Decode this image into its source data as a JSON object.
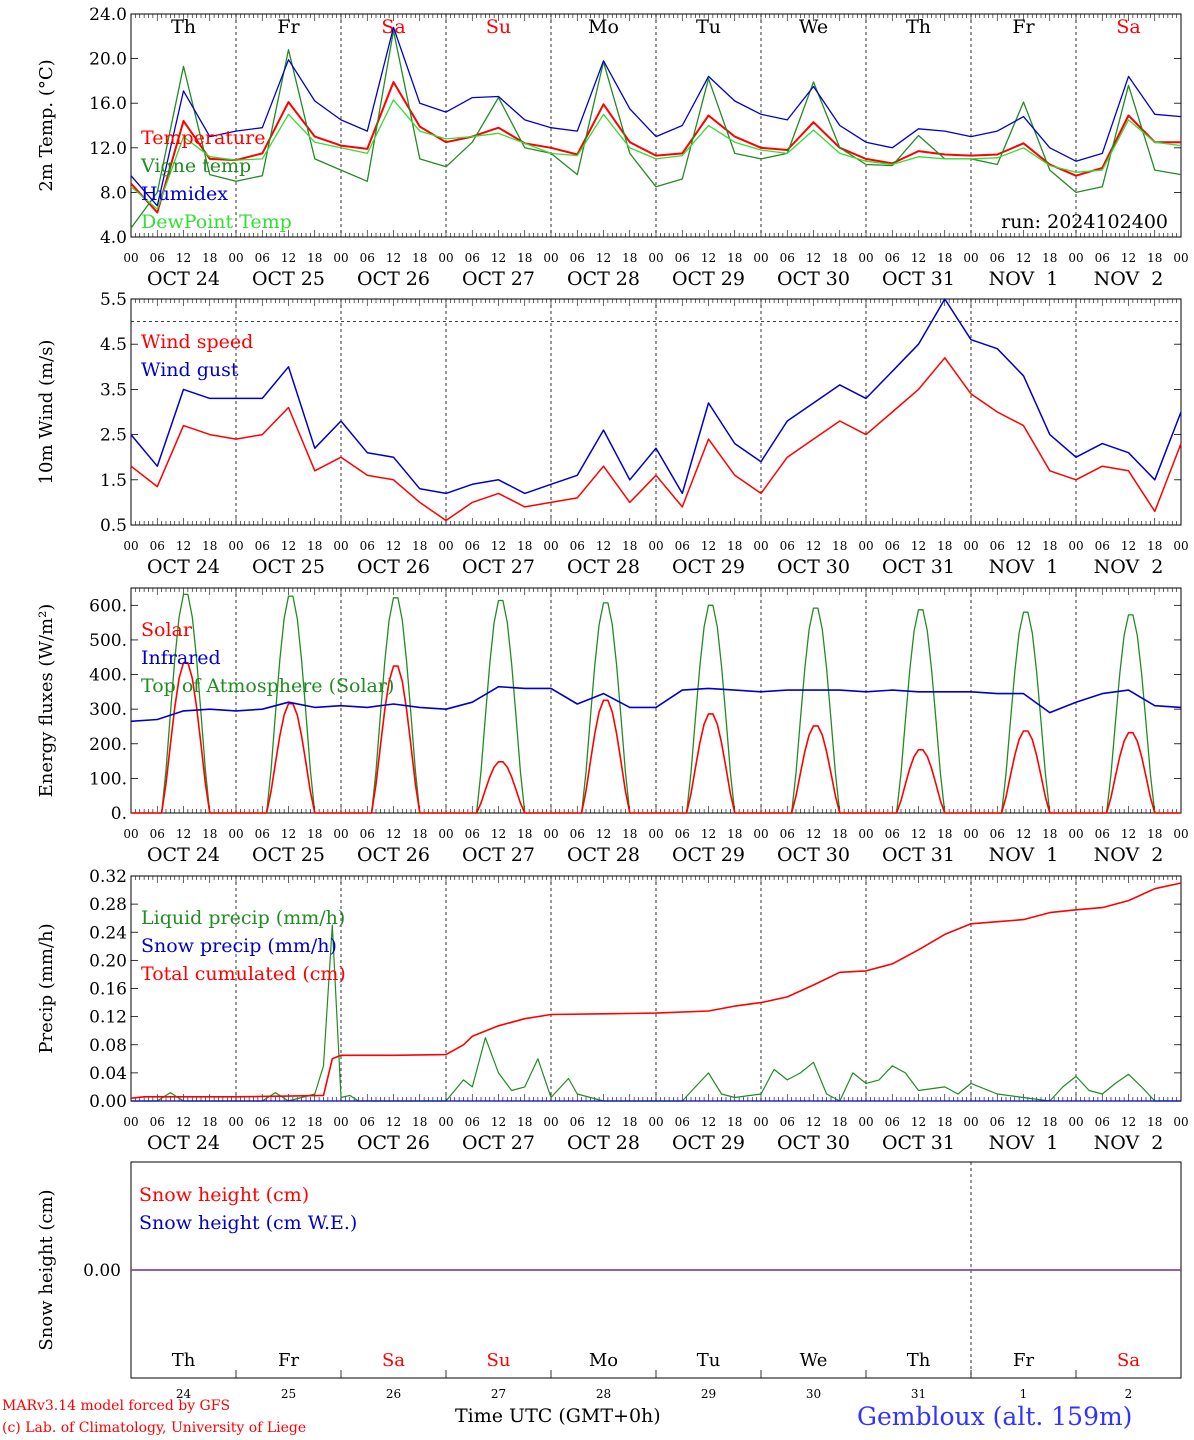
{
  "chart_data": [
    {
      "type": "line",
      "ylabel": "2m Temp. (°C)",
      "ylim": [
        4.0,
        24.0
      ],
      "yticks": [
        "4.0",
        "8.0",
        "12.0",
        "16.0",
        "20.0",
        "24.0"
      ],
      "run_label": "run: 2024102400",
      "weekday_labels": [
        "Th",
        "Fr",
        "Sa",
        "Su",
        "Mo",
        "Tu",
        "We",
        "Th",
        "Fr",
        "Sa"
      ],
      "date_labels": [
        "OCT 24",
        "OCT 25",
        "OCT 26",
        "OCT 27",
        "OCT 28",
        "OCT 29",
        "OCT 30",
        "OCT 31",
        "NOV  1",
        "NOV  2"
      ],
      "hour_ticks": [
        "00",
        "06",
        "12",
        "18"
      ],
      "x_hours": [
        0,
        6,
        12,
        18,
        24,
        30,
        36,
        42,
        48,
        54,
        60,
        66,
        72,
        78,
        84,
        90,
        96,
        102,
        108,
        114,
        120,
        126,
        132,
        138,
        144,
        150,
        156,
        162,
        168,
        174,
        180,
        186,
        192,
        198,
        204,
        210,
        216,
        222,
        228,
        234,
        240
      ],
      "series": [
        {
          "name": "Temperature",
          "color": "#ff0000",
          "values": [
            8.8,
            6.2,
            14.4,
            11.0,
            10.9,
            11.5,
            16.1,
            13.0,
            12.2,
            11.9,
            17.9,
            13.9,
            12.5,
            13.0,
            13.8,
            12.4,
            12.0,
            11.4,
            15.9,
            12.5,
            11.3,
            11.5,
            14.9,
            13.0,
            12.0,
            11.8,
            14.3,
            12.0,
            11.0,
            10.6,
            11.7,
            11.4,
            11.3,
            11.4,
            12.4,
            10.5,
            9.5,
            10.2,
            14.9,
            12.5,
            12.5
          ]
        },
        {
          "name": "Vigne temp",
          "color": "#228b22",
          "values": [
            4.8,
            8.0,
            19.3,
            9.6,
            9.0,
            9.5,
            20.8,
            11.0,
            10.0,
            9.0,
            22.5,
            11.0,
            10.3,
            12.5,
            16.5,
            12.0,
            11.5,
            9.6,
            19.7,
            11.5,
            8.5,
            9.2,
            18.2,
            11.5,
            11.0,
            11.5,
            17.9,
            12.0,
            10.5,
            10.4,
            13.1,
            11.0,
            11.0,
            10.5,
            16.1,
            10.0,
            8.0,
            8.5,
            17.6,
            10.0,
            9.6
          ]
        },
        {
          "name": "Humidex",
          "color": "#0000cc",
          "values": [
            9.5,
            6.8,
            17.1,
            13.0,
            13.5,
            13.8,
            19.9,
            16.2,
            14.5,
            13.5,
            22.8,
            16.0,
            15.2,
            16.5,
            16.6,
            14.5,
            13.8,
            13.5,
            19.8,
            15.5,
            13.0,
            14.0,
            18.4,
            16.2,
            15.0,
            14.5,
            17.5,
            14.0,
            12.5,
            12.0,
            13.7,
            13.5,
            13.0,
            13.5,
            14.8,
            12.0,
            10.8,
            11.5,
            18.4,
            15.0,
            14.8
          ]
        },
        {
          "name": "DewPoint Temp",
          "color": "#33dd33",
          "values": [
            8.5,
            6.5,
            13.0,
            11.2,
            10.9,
            11.0,
            15.0,
            12.5,
            12.0,
            11.5,
            16.3,
            13.5,
            12.8,
            13.0,
            13.3,
            12.4,
            11.5,
            11.3,
            15.0,
            12.0,
            11.0,
            11.3,
            14.0,
            12.5,
            11.8,
            11.5,
            13.6,
            11.5,
            10.8,
            10.5,
            11.2,
            11.0,
            11.0,
            11.1,
            12.0,
            10.4,
            9.8,
            10.0,
            14.5,
            12.5,
            12.2
          ]
        }
      ]
    },
    {
      "type": "line",
      "ylabel": "10m Wind (m/s)",
      "ylim": [
        0.5,
        5.5
      ],
      "yticks": [
        "0.5",
        "1.5",
        "2.5",
        "3.5",
        "4.5",
        "5.5"
      ],
      "reference_line": 5.0,
      "date_labels": [
        "OCT 24",
        "OCT 25",
        "OCT 26",
        "OCT 27",
        "OCT 28",
        "OCT 29",
        "OCT 30",
        "OCT 31",
        "NOV  1",
        "NOV  2"
      ],
      "hour_ticks": [
        "00",
        "06",
        "12",
        "18"
      ],
      "x_hours": [
        0,
        6,
        12,
        18,
        24,
        30,
        36,
        42,
        48,
        54,
        60,
        66,
        72,
        78,
        84,
        90,
        96,
        102,
        108,
        114,
        120,
        126,
        132,
        138,
        144,
        150,
        156,
        162,
        168,
        174,
        180,
        186,
        192,
        198,
        204,
        210,
        216,
        222,
        228,
        234,
        240
      ],
      "series": [
        {
          "name": "Wind speed",
          "color": "#ff0000",
          "values": [
            1.8,
            1.35,
            2.7,
            2.5,
            2.4,
            2.5,
            3.1,
            1.7,
            2.0,
            1.6,
            1.5,
            1.0,
            0.6,
            1.0,
            1.2,
            0.9,
            1.0,
            1.1,
            1.8,
            1.0,
            1.6,
            0.9,
            2.4,
            1.6,
            1.2,
            2.0,
            2.4,
            2.8,
            2.5,
            3.0,
            3.5,
            4.2,
            3.4,
            3.0,
            2.7,
            1.7,
            1.5,
            1.8,
            1.7,
            0.8,
            2.3
          ]
        },
        {
          "name": "Wind gust",
          "color": "#0000cc",
          "values": [
            2.5,
            1.8,
            3.5,
            3.3,
            3.3,
            3.3,
            4.0,
            2.2,
            2.8,
            2.1,
            2.0,
            1.3,
            1.2,
            1.4,
            1.5,
            1.2,
            1.4,
            1.6,
            2.6,
            1.5,
            2.2,
            1.2,
            3.2,
            2.3,
            1.9,
            2.8,
            3.2,
            3.6,
            3.3,
            3.9,
            4.5,
            5.5,
            4.6,
            4.4,
            3.8,
            2.5,
            2.0,
            2.3,
            2.1,
            1.5,
            3.0
          ]
        }
      ]
    },
    {
      "type": "line",
      "ylabel": "Energy fluxes (W/m²)",
      "ylim": [
        0,
        650
      ],
      "yticks": [
        "0.",
        "100.",
        "200.",
        "300.",
        "400.",
        "500.",
        "600."
      ],
      "date_labels": [
        "OCT 24",
        "OCT 25",
        "OCT 26",
        "OCT 27",
        "OCT 28",
        "OCT 29",
        "OCT 30",
        "OCT 31",
        "NOV  1",
        "NOV  2"
      ],
      "hour_ticks": [
        "00",
        "06",
        "12",
        "18"
      ],
      "daylight": {
        "sunrise_hour": 7,
        "noon_hour": 12.5,
        "sunset_hour": 18
      },
      "series": [
        {
          "name": "Solar",
          "color": "#ff0000",
          "daily_peak": [
            440,
            320,
            430,
            150,
            330,
            290,
            255,
            185,
            240,
            235
          ]
        },
        {
          "name": "Infrared",
          "color": "#0000cc",
          "x_hours": [
            0,
            6,
            12,
            18,
            24,
            30,
            36,
            42,
            48,
            54,
            60,
            66,
            72,
            78,
            84,
            90,
            96,
            102,
            108,
            114,
            120,
            126,
            132,
            138,
            144,
            150,
            156,
            162,
            168,
            174,
            180,
            186,
            192,
            198,
            204,
            210,
            216,
            222,
            228,
            234,
            240
          ],
          "values": [
            265,
            270,
            295,
            300,
            295,
            300,
            320,
            305,
            310,
            305,
            315,
            305,
            300,
            320,
            365,
            360,
            360,
            315,
            345,
            305,
            305,
            355,
            360,
            355,
            350,
            355,
            355,
            355,
            350,
            355,
            350,
            350,
            350,
            345,
            345,
            290,
            320,
            345,
            355,
            310,
            305
          ]
        },
        {
          "name": "Top of Atmosphere (Solar)",
          "color": "#228b22",
          "daily_peak": [
            640,
            635,
            630,
            622,
            615,
            608,
            600,
            595,
            588,
            580
          ]
        }
      ]
    },
    {
      "type": "line",
      "ylabel": "Precip (mm/h)",
      "ylim": [
        0.0,
        0.32
      ],
      "yticks": [
        "0.00",
        "0.04",
        "0.08",
        "0.12",
        "0.16",
        "0.20",
        "0.24",
        "0.28",
        "0.32"
      ],
      "date_labels": [
        "OCT 24",
        "OCT 25",
        "OCT 26",
        "OCT 27",
        "OCT 28",
        "OCT 29",
        "OCT 30",
        "OCT 31",
        "NOV  1",
        "NOV  2"
      ],
      "hour_ticks": [
        "00",
        "06",
        "12",
        "18"
      ],
      "series": [
        {
          "name": "Liquid precip (mm/h)",
          "color": "#228b22",
          "x_hours": [
            0,
            6,
            9,
            12,
            18,
            24,
            30,
            33,
            36,
            42,
            44,
            46,
            48,
            50,
            52,
            54,
            60,
            66,
            72,
            76,
            78,
            81,
            84,
            87,
            90,
            93,
            96,
            100,
            102,
            108,
            114,
            120,
            126,
            129,
            132,
            135,
            138,
            144,
            147,
            150,
            153,
            156,
            159,
            162,
            165,
            168,
            171,
            174,
            177,
            180,
            186,
            189,
            192,
            198,
            204,
            210,
            213,
            216,
            219,
            222,
            225,
            228,
            231,
            234,
            240
          ],
          "values": [
            0,
            0,
            0.012,
            0,
            0,
            0,
            0,
            0.012,
            0,
            0.01,
            0.05,
            0.25,
            0.005,
            0.008,
            0,
            0,
            0,
            0,
            0,
            0.03,
            0.02,
            0.09,
            0.04,
            0.015,
            0.02,
            0.06,
            0.005,
            0.032,
            0.01,
            0,
            0,
            0,
            0,
            0.02,
            0.04,
            0.01,
            0.005,
            0.01,
            0.045,
            0.03,
            0.04,
            0.055,
            0.01,
            0,
            0.04,
            0.025,
            0.03,
            0.05,
            0.04,
            0.015,
            0.02,
            0.01,
            0.025,
            0.01,
            0.005,
            0,
            0.02,
            0.035,
            0.015,
            0.01,
            0.025,
            0.038,
            0.02,
            0,
            0
          ]
        },
        {
          "name": "Snow precip (mm/h)",
          "color": "#0000cc",
          "x_hours": [
            0,
            240
          ],
          "values": [
            0,
            0
          ]
        },
        {
          "name": "Total cumulated (cm)",
          "color": "#ff0000",
          "x_hours": [
            0,
            3,
            12,
            24,
            36,
            44,
            46,
            48,
            60,
            72,
            76,
            78,
            84,
            90,
            96,
            108,
            120,
            132,
            138,
            144,
            150,
            156,
            162,
            168,
            174,
            180,
            186,
            192,
            198,
            204,
            210,
            216,
            222,
            228,
            234,
            240
          ],
          "values": [
            0.004,
            0.006,
            0.006,
            0.006,
            0.007,
            0.008,
            0.06,
            0.065,
            0.065,
            0.066,
            0.08,
            0.092,
            0.107,
            0.117,
            0.123,
            0.124,
            0.125,
            0.128,
            0.135,
            0.14,
            0.148,
            0.165,
            0.183,
            0.185,
            0.195,
            0.215,
            0.237,
            0.252,
            0.255,
            0.258,
            0.268,
            0.272,
            0.275,
            0.285,
            0.302,
            0.31
          ]
        }
      ]
    },
    {
      "type": "line",
      "ylabel": "Snow height (cm)",
      "yticks": [
        "0.00"
      ],
      "weekday_labels": [
        "Th",
        "Fr",
        "Sa",
        "Su",
        "Mo",
        "Tu",
        "We",
        "Th",
        "Fr",
        "Sa"
      ],
      "day_numbers": [
        "24",
        "25",
        "26",
        "27",
        "28",
        "29",
        "30",
        "31",
        "1",
        "2"
      ],
      "series": [
        {
          "name": "Snow height (cm)",
          "color": "#ff0000",
          "x_hours": [
            0,
            240
          ],
          "values": [
            0,
            0
          ]
        },
        {
          "name": "Snow height (cm W.E.)",
          "color": "#0000cc",
          "x_hours": [
            0,
            240
          ],
          "values": [
            0,
            0
          ]
        }
      ]
    }
  ],
  "weekend_color": "#ff0000",
  "footer": {
    "credit_line1": "MARv3.14 model forced by GFS",
    "credit_line2": "(c) Lab. of Climatology, University of Liege",
    "x_title": "Time UTC (GMT+0h)",
    "station": "Gembloux (alt. 159m)"
  }
}
